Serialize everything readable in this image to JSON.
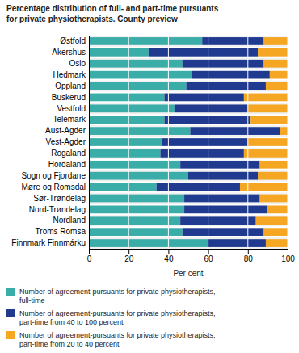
{
  "chart_data": {
    "type": "bar",
    "orientation": "horizontal",
    "stacked": true,
    "title": "Percentage distribution of full- and part-time pursuants\nfor private physiotherapists. County preview",
    "categories": [
      "Østfold",
      "Akershus",
      "Oslo",
      "Hedmark",
      "Oppland",
      "Buskerud",
      "Vestfold",
      "Telemark",
      "Aust-Agder",
      "Vest-Agder",
      "Rogaland",
      "Hordaland",
      "Sogn og Fjordane",
      "Møre og Romsdal",
      "Sør-Trøndelag",
      "Nord-Trøndelag",
      "Nordland",
      "Troms Romsa",
      "Finnmark Finnmárku"
    ],
    "series": [
      {
        "name": "Number of agreement-pursuants for private physiotherapists,\nfull-time",
        "color": "#3aada8",
        "values": [
          57,
          30,
          47,
          52,
          49,
          38,
          43,
          38,
          51,
          37,
          36,
          46,
          50,
          34,
          48,
          48,
          46,
          47,
          60
        ]
      },
      {
        "name": "Number of agreement-pursuants for private physiotherapists,\npart-time from 40 to 100 percent",
        "color": "#1f3a8f",
        "values": [
          31,
          55,
          41,
          39,
          40,
          40,
          37,
          43,
          45,
          43,
          42,
          40,
          35,
          42,
          38,
          42,
          38,
          41,
          29
        ]
      },
      {
        "name": "Number of agreement-pursuants for private physiotherapists,\npart-time from 20 to 40 percent",
        "color": "#f5a623",
        "values": [
          12,
          15,
          12,
          9,
          11,
          22,
          20,
          19,
          4,
          20,
          22,
          14,
          15,
          24,
          14,
          10,
          16,
          12,
          11
        ]
      }
    ],
    "xlabel": "Per cent",
    "xlim": [
      0,
      100
    ],
    "xticks": [
      0,
      20,
      40,
      60,
      80,
      100
    ],
    "grid": true,
    "legend": "bottom"
  }
}
